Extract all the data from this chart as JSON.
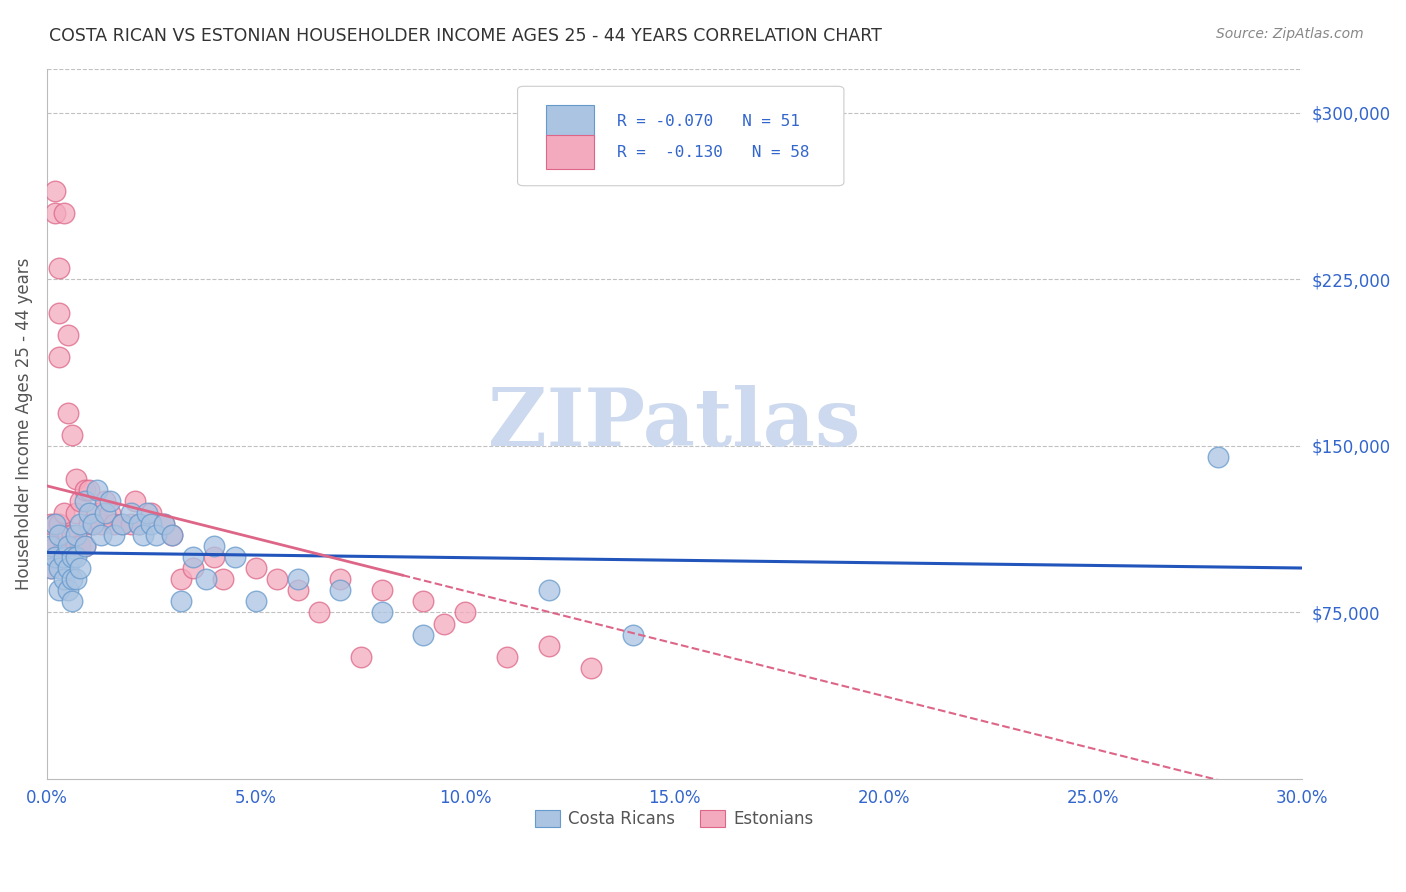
{
  "title": "COSTA RICAN VS ESTONIAN HOUSEHOLDER INCOME AGES 25 - 44 YEARS CORRELATION CHART",
  "source": "Source: ZipAtlas.com",
  "ylabel": "Householder Income Ages 25 - 44 years",
  "xlabel_ticks": [
    "0.0%",
    "5.0%",
    "10.0%",
    "15.0%",
    "20.0%",
    "25.0%",
    "30.0%"
  ],
  "ytick_labels": [
    "$75,000",
    "$150,000",
    "$225,000",
    "$300,000"
  ],
  "ytick_values": [
    75000,
    150000,
    225000,
    300000
  ],
  "xlim": [
    0.0,
    0.3
  ],
  "ylim": [
    0,
    320000
  ],
  "watermark": "ZIPatlas",
  "watermark_color": "#ccd9ee",
  "background_color": "#ffffff",
  "grid_color": "#bbbbbb",
  "title_color": "#333333",
  "source_color": "#888888",
  "blue_scatter_color": "#aac4e2",
  "blue_edge_color": "#6699cc",
  "pink_scatter_color": "#f4aabe",
  "pink_edge_color": "#dd6688",
  "blue_line_color": "#2255bb",
  "pink_line_color": "#dd6688",
  "costa_rican_x": [
    0.001,
    0.001,
    0.002,
    0.002,
    0.003,
    0.003,
    0.003,
    0.004,
    0.004,
    0.005,
    0.005,
    0.005,
    0.006,
    0.006,
    0.006,
    0.007,
    0.007,
    0.007,
    0.008,
    0.008,
    0.009,
    0.009,
    0.01,
    0.011,
    0.012,
    0.013,
    0.014,
    0.015,
    0.016,
    0.018,
    0.02,
    0.022,
    0.023,
    0.024,
    0.025,
    0.026,
    0.028,
    0.03,
    0.032,
    0.035,
    0.038,
    0.04,
    0.045,
    0.05,
    0.06,
    0.07,
    0.08,
    0.09,
    0.12,
    0.14,
    0.28
  ],
  "costa_rican_y": [
    105000,
    95000,
    115000,
    100000,
    110000,
    95000,
    85000,
    100000,
    90000,
    105000,
    95000,
    85000,
    100000,
    90000,
    80000,
    110000,
    100000,
    90000,
    115000,
    95000,
    125000,
    105000,
    120000,
    115000,
    130000,
    110000,
    120000,
    125000,
    110000,
    115000,
    120000,
    115000,
    110000,
    120000,
    115000,
    110000,
    115000,
    110000,
    80000,
    100000,
    90000,
    105000,
    100000,
    80000,
    90000,
    85000,
    75000,
    65000,
    85000,
    65000,
    145000
  ],
  "estonian_x": [
    0.001,
    0.001,
    0.001,
    0.002,
    0.002,
    0.002,
    0.002,
    0.003,
    0.003,
    0.003,
    0.003,
    0.004,
    0.004,
    0.004,
    0.005,
    0.005,
    0.005,
    0.006,
    0.006,
    0.007,
    0.007,
    0.007,
    0.008,
    0.008,
    0.009,
    0.009,
    0.01,
    0.01,
    0.011,
    0.012,
    0.013,
    0.014,
    0.015,
    0.016,
    0.018,
    0.02,
    0.021,
    0.022,
    0.025,
    0.028,
    0.03,
    0.032,
    0.035,
    0.04,
    0.042,
    0.05,
    0.055,
    0.06,
    0.065,
    0.07,
    0.075,
    0.08,
    0.09,
    0.095,
    0.1,
    0.11,
    0.12,
    0.13
  ],
  "estonian_y": [
    115000,
    105000,
    95000,
    265000,
    255000,
    115000,
    105000,
    230000,
    210000,
    190000,
    115000,
    255000,
    120000,
    105000,
    200000,
    165000,
    110000,
    155000,
    110000,
    135000,
    120000,
    105000,
    125000,
    105000,
    130000,
    105000,
    130000,
    115000,
    115000,
    120000,
    115000,
    125000,
    120000,
    115000,
    115000,
    115000,
    125000,
    115000,
    120000,
    115000,
    110000,
    90000,
    95000,
    100000,
    90000,
    95000,
    90000,
    85000,
    75000,
    90000,
    55000,
    85000,
    80000,
    70000,
    75000,
    55000,
    60000,
    50000
  ]
}
